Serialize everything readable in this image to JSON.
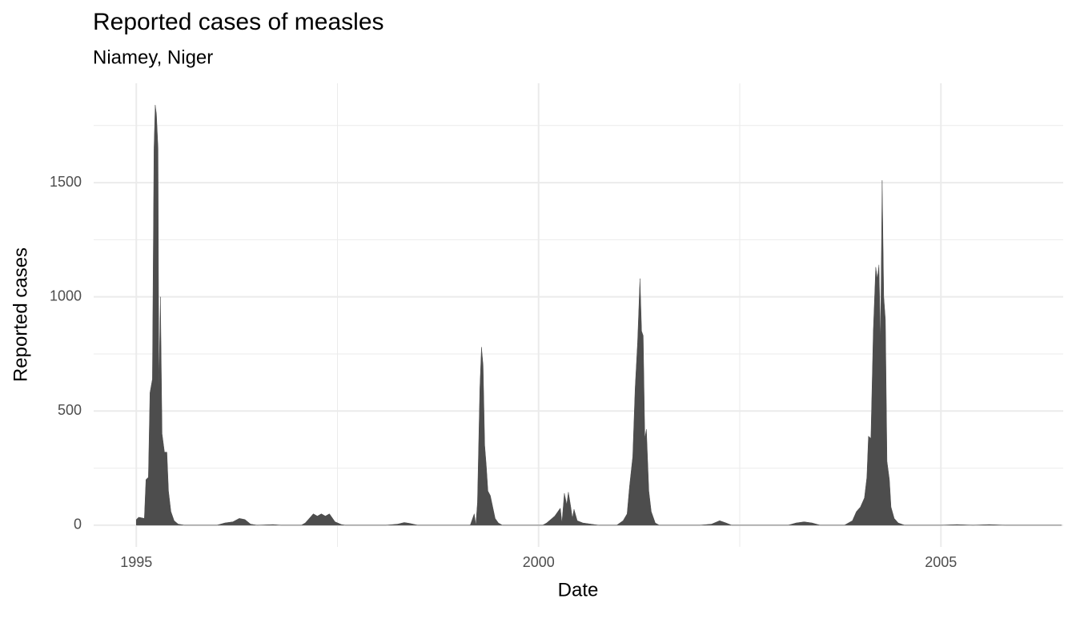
{
  "chart_data": {
    "type": "area",
    "title": "Reported cases of measles",
    "subtitle": "Niamey, Niger",
    "x_label": "Date",
    "y_label": "Reported cases",
    "color": "#4d4d4d",
    "grid": true,
    "xlim": [
      1994.47,
      2006.52
    ],
    "ylim": [
      -95,
      1935
    ],
    "xticks": [
      1995,
      2000,
      2005
    ],
    "yticks": [
      0,
      500,
      1000,
      1500
    ],
    "x_minor_ticks": [
      1997.5,
      2002.5
    ],
    "y_minor_ticks": [
      250,
      750,
      1250,
      1750
    ],
    "x": [
      1995.0,
      1995.03,
      1995.1,
      1995.12,
      1995.15,
      1995.17,
      1995.2,
      1995.22,
      1995.235,
      1995.25,
      1995.27,
      1995.28,
      1995.3,
      1995.32,
      1995.35,
      1995.38,
      1995.4,
      1995.43,
      1995.47,
      1995.52,
      1995.6,
      1996.0,
      1996.1,
      1996.2,
      1996.28,
      1996.35,
      1996.42,
      1996.5,
      1996.7,
      1996.8,
      1997.05,
      1997.1,
      1997.2,
      1997.25,
      1997.3,
      1997.35,
      1997.4,
      1997.47,
      1997.55,
      1997.6,
      1998.1,
      1998.25,
      1998.33,
      1998.4,
      1998.5,
      1999.15,
      1999.2,
      1999.22,
      1999.24,
      1999.27,
      1999.29,
      1999.31,
      1999.33,
      1999.35,
      1999.37,
      1999.4,
      1999.43,
      1999.46,
      1999.5,
      1999.55,
      2000.05,
      2000.1,
      2000.2,
      2000.27,
      2000.29,
      2000.32,
      2000.35,
      2000.37,
      2000.4,
      2000.42,
      2000.44,
      2000.48,
      2000.55,
      2000.65,
      2000.75,
      2000.97,
      2001.05,
      2001.1,
      2001.13,
      2001.17,
      2001.2,
      2001.23,
      2001.26,
      2001.28,
      2001.3,
      2001.32,
      2001.34,
      2001.37,
      2001.4,
      2001.45,
      2001.5,
      2002.0,
      2002.15,
      2002.25,
      2002.33,
      2002.4,
      2003.1,
      2003.2,
      2003.3,
      2003.4,
      2003.5,
      2003.8,
      2003.9,
      2003.95,
      2004.0,
      2004.05,
      2004.08,
      2004.1,
      2004.13,
      2004.16,
      2004.19,
      2004.21,
      2004.23,
      2004.25,
      2004.27,
      2004.29,
      2004.31,
      2004.33,
      2004.36,
      2004.38,
      2004.42,
      2004.47,
      2004.55,
      2005.0,
      2005.2,
      2005.4,
      2005.6,
      2005.8,
      2006.5
    ],
    "values": [
      25,
      35,
      30,
      200,
      210,
      580,
      640,
      1650,
      1840,
      1800,
      1650,
      600,
      1000,
      400,
      320,
      320,
      150,
      60,
      20,
      5,
      0,
      0,
      10,
      15,
      30,
      25,
      5,
      0,
      3,
      0,
      0,
      10,
      50,
      40,
      50,
      40,
      50,
      15,
      3,
      0,
      0,
      5,
      12,
      8,
      0,
      0,
      50,
      0,
      100,
      600,
      780,
      700,
      350,
      260,
      150,
      130,
      80,
      30,
      10,
      0,
      0,
      10,
      40,
      75,
      10,
      140,
      90,
      145,
      80,
      30,
      70,
      20,
      10,
      5,
      0,
      0,
      20,
      50,
      170,
      300,
      600,
      800,
      1080,
      850,
      830,
      380,
      420,
      150,
      60,
      10,
      0,
      0,
      5,
      20,
      10,
      0,
      0,
      10,
      15,
      10,
      0,
      0,
      20,
      60,
      80,
      120,
      210,
      390,
      380,
      850,
      1130,
      1080,
      1140,
      800,
      1510,
      1000,
      900,
      280,
      200,
      80,
      30,
      10,
      0,
      0,
      3,
      0,
      3,
      0,
      0
    ]
  }
}
